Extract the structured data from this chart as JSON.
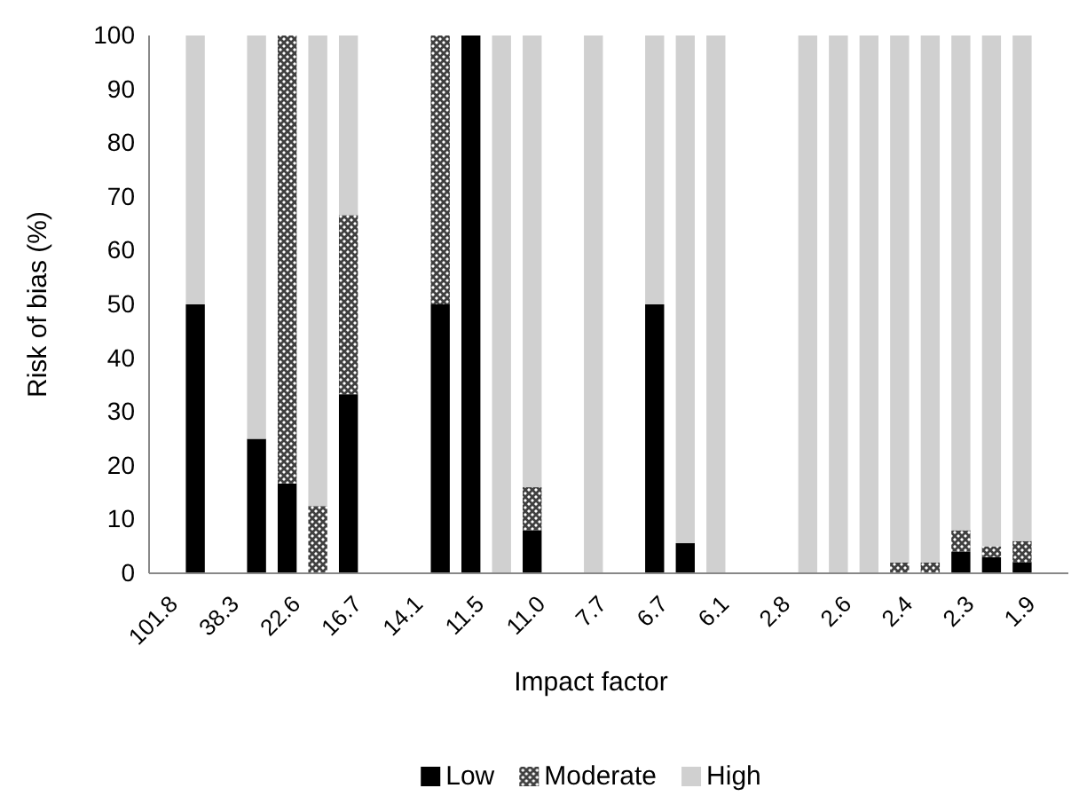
{
  "chart_data": {
    "type": "bar",
    "stacked": true,
    "xlabel": "Impact factor",
    "ylabel": "Risk of bias (%)",
    "categories": [
      "101.8",
      null,
      "38.3",
      null,
      "22.6",
      null,
      "16.7",
      null,
      "14.1",
      null,
      "11.5",
      null,
      "11.0",
      null,
      "7.7",
      null,
      "6.7",
      null,
      "6.1",
      null,
      "2.8",
      null,
      "2.6",
      null,
      "2.4",
      null,
      "2.3",
      null,
      "1.9",
      null
    ],
    "series": [
      {
        "name": "Low",
        "color": "#000000",
        "values": [
          null,
          50,
          null,
          25,
          16.7,
          null,
          33.3,
          null,
          null,
          50,
          100,
          null,
          8,
          null,
          null,
          null,
          50,
          5.6,
          null,
          null,
          null,
          null,
          null,
          null,
          null,
          null,
          4,
          3,
          2,
          null
        ]
      },
      {
        "name": "Moderate",
        "color": "#404040",
        "values": [
          null,
          null,
          null,
          null,
          83.3,
          12.5,
          33.3,
          null,
          null,
          50,
          null,
          null,
          8,
          null,
          null,
          null,
          null,
          null,
          null,
          null,
          null,
          null,
          null,
          null,
          2,
          2,
          4,
          2,
          4,
          null
        ]
      },
      {
        "name": "High",
        "color": "#d0d0d0",
        "values": [
          null,
          50,
          null,
          75,
          null,
          87.5,
          33.4,
          null,
          null,
          null,
          null,
          100,
          84,
          null,
          100,
          null,
          50,
          94.4,
          100,
          null,
          null,
          100,
          100,
          100,
          98,
          98,
          92,
          95,
          94,
          null
        ]
      }
    ],
    "ylim": [
      0,
      100
    ],
    "yticks": [
      0,
      10,
      20,
      30,
      40,
      50,
      60,
      70,
      80,
      90,
      100
    ],
    "legend": "bottom"
  }
}
